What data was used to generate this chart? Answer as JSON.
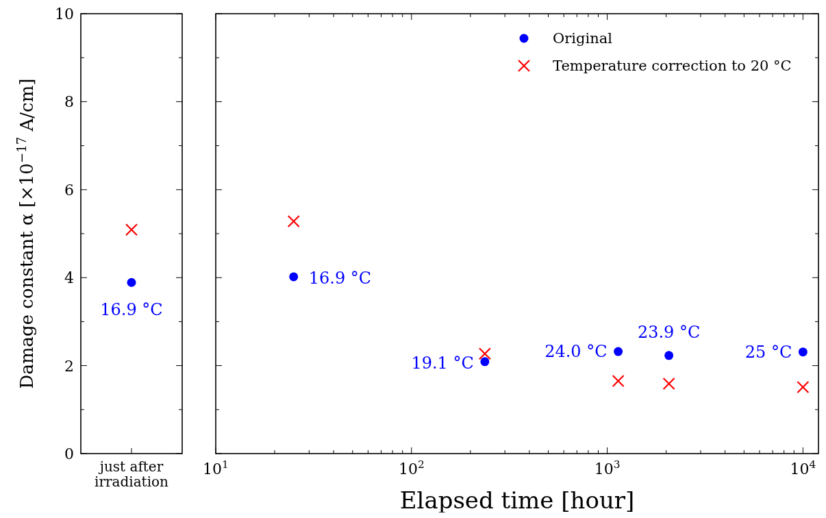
{
  "chart_data": [
    {
      "type": "scatter",
      "ylabel": "Damage constant α [×10$^{−17}$ A/cm]",
      "categories": [
        "just after irradiation"
      ],
      "ylim": [
        0,
        10
      ],
      "yticks": [
        0,
        {
          "value": 1,
          "label": null
        },
        2,
        {
          "value": 3,
          "label": null
        },
        4,
        {
          "value": 5,
          "label": null
        },
        6,
        {
          "value": 7,
          "label": null
        },
        8,
        {
          "value": 9,
          "label": null
        },
        10
      ],
      "series": [
        {
          "color": "#0000ff",
          "marker": "circle",
          "values": [
            3.89
          ]
        },
        {
          "color": "#ff0000",
          "marker": "cross",
          "values": [
            5.09
          ]
        }
      ],
      "annotations": [
        {
          "text": "16.9 °C",
          "x": "just after irradiation",
          "y": 3.89
        }
      ],
      "legend": false
    },
    {
      "type": "scatter",
      "xlabel": "Elapsed time [hour]",
      "log": "x",
      "xlim": [
        10,
        12000
      ],
      "xticks": [
        {
          "value": 10,
          "label": "10$^{1}$"
        },
        {
          "value": 20,
          "label": null
        },
        {
          "value": 30,
          "label": null
        },
        {
          "value": 40,
          "label": null
        },
        {
          "value": 50,
          "label": null
        },
        {
          "value": 60,
          "label": null
        },
        {
          "value": 70,
          "label": null
        },
        {
          "value": 80,
          "label": null
        },
        {
          "value": 90,
          "label": null
        },
        {
          "value": 100,
          "label": "10$^{2}$"
        },
        {
          "value": 200,
          "label": null
        },
        {
          "value": 300,
          "label": null
        },
        {
          "value": 400,
          "label": null
        },
        {
          "value": 500,
          "label": null
        },
        {
          "value": 600,
          "label": null
        },
        {
          "value": 700,
          "label": null
        },
        {
          "value": 800,
          "label": null
        },
        {
          "value": 900,
          "label": null
        },
        {
          "value": 1000,
          "label": "10$^{3}$"
        },
        {
          "value": 2000,
          "label": null
        },
        {
          "value": 3000,
          "label": null
        },
        {
          "value": 4000,
          "label": null
        },
        {
          "value": 5000,
          "label": null
        },
        {
          "value": 6000,
          "label": null
        },
        {
          "value": 7000,
          "label": null
        },
        {
          "value": 8000,
          "label": null
        },
        {
          "value": 9000,
          "label": null
        },
        {
          "value": 10000,
          "label": "10$^{4}$"
        }
      ],
      "ylim": [
        0,
        10
      ],
      "yticks": [
        0,
        {
          "value": 1,
          "label": null
        },
        2,
        {
          "value": 3,
          "label": null
        },
        4,
        {
          "value": 5,
          "label": null
        },
        6,
        {
          "value": 7,
          "label": null
        },
        8,
        {
          "value": 9,
          "label": null
        },
        10
      ],
      "tick_labels": "x",
      "x": [
        25,
        237,
        1138,
        2066,
        10000
      ],
      "series": [
        {
          "name": "Original",
          "color": "#0000ff",
          "marker": "circle",
          "values": [
            4.02,
            2.09,
            2.32,
            2.23,
            2.31
          ]
        },
        {
          "name": "Temperature correction to 20 °C",
          "color": "#ff0000",
          "marker": "cross",
          "values": [
            5.28,
            2.27,
            1.65,
            1.59,
            1.51
          ]
        }
      ],
      "annotations": [
        {
          "text": "16.9 °C",
          "x": 25,
          "y": 4.02
        },
        {
          "text": "19.1 °C",
          "x": 237,
          "y": 2.09
        },
        {
          "text": "24.0 °C",
          "x": 1138,
          "y": 2.32
        },
        {
          "text": "23.9 °C",
          "x": 2066,
          "y": 2.23
        },
        {
          "text": "25 °C",
          "x": 10000,
          "y": 2.31
        }
      ],
      "legend": "top right"
    }
  ]
}
